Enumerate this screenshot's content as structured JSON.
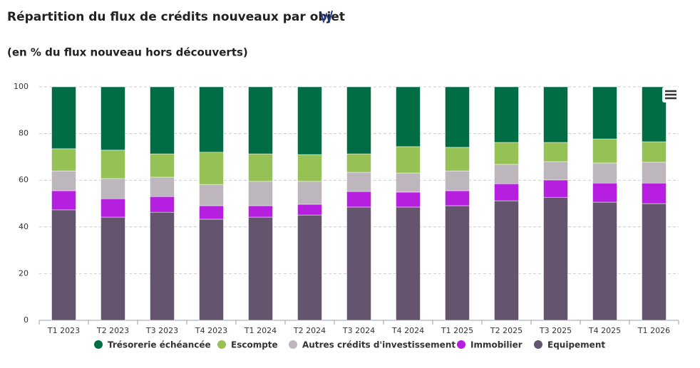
{
  "chart_data": {
    "type": "stacked_bar",
    "title": "Répartition du flux de crédits nouveaux par objet",
    "subtitle": "(en % du flux nouveau hors découverts)",
    "categories": [
      "T1 2023",
      "T2 2023",
      "T3 2023",
      "T4 2023",
      "T1 2024",
      "T2 2024",
      "T3 2024",
      "T4 2024",
      "T1 2025",
      "T2 2025",
      "T3 2025",
      "T4 2025",
      "T1 2026"
    ],
    "series": [
      {
        "name": "Trésorerie échéancée",
        "color": "#006d45",
        "values": [
          26.5,
          27.1,
          28.7,
          28.0,
          28.7,
          29.0,
          28.7,
          25.6,
          25.9,
          23.8,
          23.8,
          22.3,
          23.5
        ]
      },
      {
        "name": "Escompte",
        "color": "#95c155",
        "values": [
          9.5,
          12.2,
          10.0,
          13.8,
          11.8,
          11.5,
          7.9,
          11.3,
          10.1,
          9.4,
          8.2,
          10.3,
          8.8
        ]
      },
      {
        "name": "Autres crédits d'investissement",
        "color": "#bdb6bd",
        "values": [
          8.5,
          8.6,
          8.3,
          9.1,
          10.4,
          9.8,
          8.2,
          8.2,
          8.5,
          8.3,
          7.9,
          8.6,
          8.9
        ]
      },
      {
        "name": "Immobilier",
        "color": "#b61ee0",
        "values": [
          8.2,
          7.9,
          6.7,
          5.8,
          4.9,
          4.6,
          6.7,
          6.4,
          6.4,
          7.3,
          7.4,
          8.2,
          8.8
        ]
      },
      {
        "name": "Equipement",
        "color": "#65546e",
        "values": [
          47.3,
          44.2,
          46.3,
          43.3,
          44.2,
          45.1,
          48.5,
          48.5,
          49.1,
          51.2,
          52.7,
          50.6,
          50.0
        ]
      }
    ],
    "ylim": [
      0,
      100
    ],
    "yticks": [
      0,
      20,
      40,
      60,
      80,
      100
    ],
    "grid": true,
    "legend": "bottom"
  }
}
